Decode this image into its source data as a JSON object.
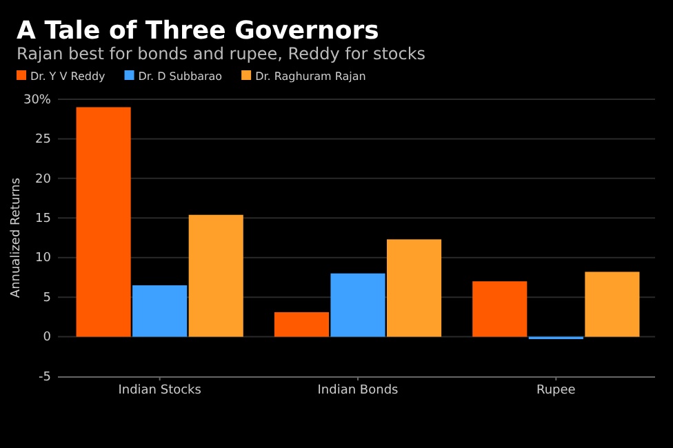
{
  "chart_data": {
    "type": "bar",
    "title": "A Tale of Three Governors",
    "subtitle": "Rajan best for bonds and rupee, Reddy for stocks",
    "ylabel": "Annualized Returns",
    "categories": [
      "Indian Stocks",
      "Indian Bonds",
      "Rupee"
    ],
    "series": [
      {
        "name": "Dr. Y V Reddy",
        "color": "#ff5a00",
        "values": [
          29.0,
          3.1,
          7.0
        ]
      },
      {
        "name": "Dr. D Subbarao",
        "color": "#3ea1ff",
        "values": [
          6.5,
          8.0,
          -0.3
        ]
      },
      {
        "name": "Dr. Raghuram Rajan",
        "color": "#ffa02a",
        "values": [
          15.4,
          12.3,
          8.2
        ]
      }
    ],
    "ylim": [
      -5,
      30
    ],
    "yticks": [
      -5,
      0,
      5,
      10,
      15,
      20,
      25,
      {
        "value": 30,
        "label": "30%"
      }
    ],
    "grid": "y",
    "legend": "top left"
  }
}
